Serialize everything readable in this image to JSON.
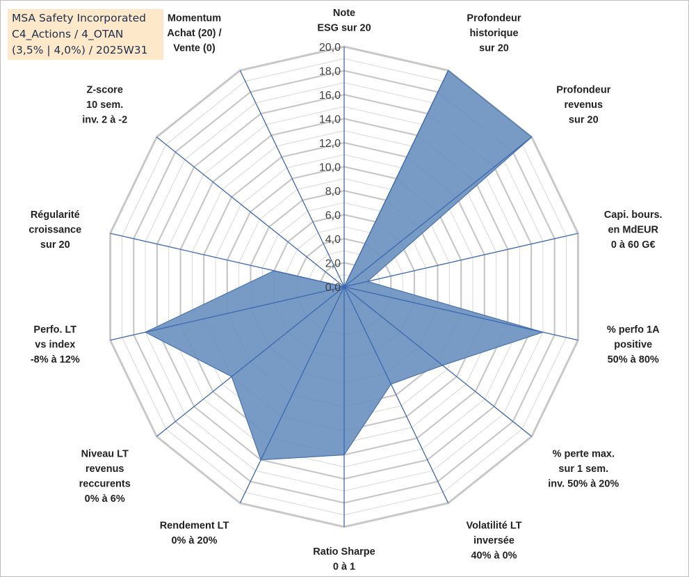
{
  "title_box": {
    "line1": "MSA Safety Incorporated",
    "line2": "C4_Actions / 4_OTAN",
    "line3": "(3,5% | 4,0%) / 2025W31"
  },
  "colors": {
    "fill": "#7096c2",
    "stroke": "#4a72ad",
    "spoke": "#3c68b0",
    "grid": "#c8c8c8",
    "title_bg": "#fde9c9"
  },
  "chart_data": {
    "type": "radar",
    "scale": {
      "min": 0,
      "max": 20,
      "major_step": 2
    },
    "tick_labels": [
      "0,0",
      "2,0",
      "4,0",
      "6,0",
      "8,0",
      "10,0",
      "12,0",
      "14,0",
      "16,0",
      "18,0",
      "20,0"
    ],
    "axes": [
      {
        "lines": [
          "Note",
          "ESG sur 20"
        ],
        "value": 0
      },
      {
        "lines": [
          "Profondeur",
          "historique",
          "sur 20"
        ],
        "value": 20
      },
      {
        "lines": [
          "Profondeur",
          "revenus",
          "sur 20"
        ],
        "value": 20
      },
      {
        "lines": [
          "Capi. bours.",
          "en MdEUR",
          "0 à 60 G€"
        ],
        "value": 2
      },
      {
        "lines": [
          "% perfo 1A",
          "positive",
          "50% à 80%"
        ],
        "value": 17
      },
      {
        "lines": [
          "% perte max.",
          "sur 1 sem.",
          "inv. 50% à 20%"
        ],
        "value": 10.5
      },
      {
        "lines": [
          "Volatilité LT",
          "inversée",
          "40% à 0%"
        ],
        "value": 9
      },
      {
        "lines": [
          "Ratio Sharpe",
          "0 à 1"
        ],
        "value": 14
      },
      {
        "lines": [
          "Rendement LT",
          "0% à 20%"
        ],
        "value": 16
      },
      {
        "lines": [
          "Niveau LT",
          "revenus",
          "reccurents",
          "0% à 6%"
        ],
        "value": 12
      },
      {
        "lines": [
          "Perfo. LT",
          "vs index",
          "-8% à 12%"
        ],
        "value": 17
      },
      {
        "lines": [
          "Régularité",
          "croissance",
          "sur 20"
        ],
        "value": 6
      },
      {
        "lines": [
          "Z-score",
          "10 sem.",
          "inv. 2 à -2"
        ],
        "value": 0
      },
      {
        "lines": [
          "Momentum",
          "Achat (20) /",
          "Vente (0)"
        ],
        "value": 0
      }
    ]
  }
}
